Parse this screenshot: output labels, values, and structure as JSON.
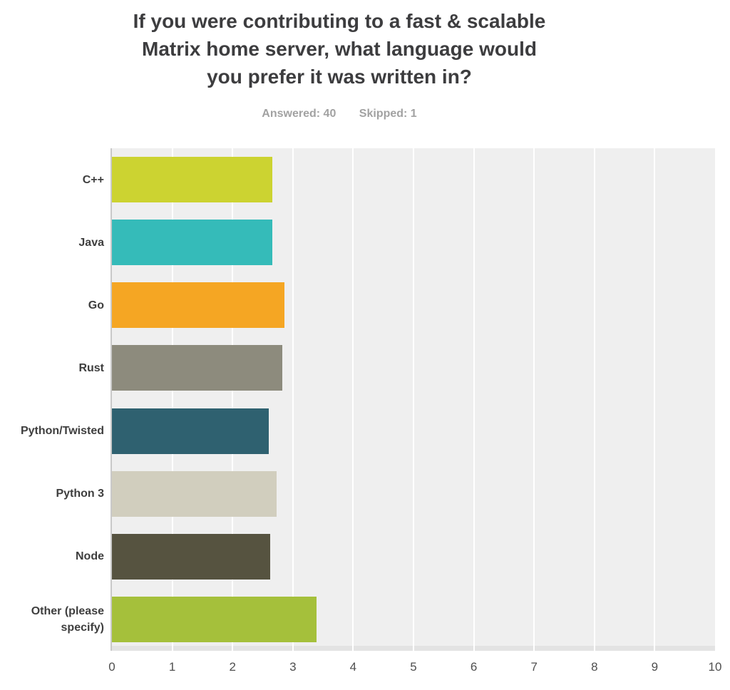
{
  "header": {
    "title_lines": [
      "If you were contributing to a fast & scalable",
      "Matrix home server, what language would",
      "you prefer it was written in?"
    ],
    "answered_label": "Answered: 40",
    "skipped_label": "Skipped: 1"
  },
  "chart_data": {
    "type": "bar",
    "orientation": "horizontal",
    "title": "If you were contributing to a fast & scalable Matrix home server, what language would you prefer it was written in?",
    "answered": 40,
    "skipped": 1,
    "categories": [
      "C++",
      "Java",
      "Go",
      "Rust",
      "Python/Twisted",
      "Python 3",
      "Node",
      "Other (please specify)"
    ],
    "values": [
      2.66,
      2.66,
      2.86,
      2.83,
      2.6,
      2.73,
      2.62,
      3.39
    ],
    "bar_colors": [
      "#ccd331",
      "#35bbb9",
      "#f5a623",
      "#8d8b7d",
      "#2f6170",
      "#d1cebe",
      "#565340",
      "#a5c03b"
    ],
    "xlabel": "",
    "ylabel": "",
    "xlim": [
      0,
      10
    ],
    "xticks": [
      0,
      1,
      2,
      3,
      4,
      5,
      6,
      7,
      8,
      9,
      10
    ],
    "grid": true,
    "legend": "none",
    "plot_bg_color": "#efefef",
    "gridline_color": "#ffffff",
    "axis_line_color": "#c9c9c9",
    "plot_bottom_edge_color": "#e3e3e3",
    "title_color": "#3d3d3f",
    "stats_color": "#a2a2a2",
    "label_color": "#3e3e3e",
    "tick_color": "#4f4f4f"
  }
}
